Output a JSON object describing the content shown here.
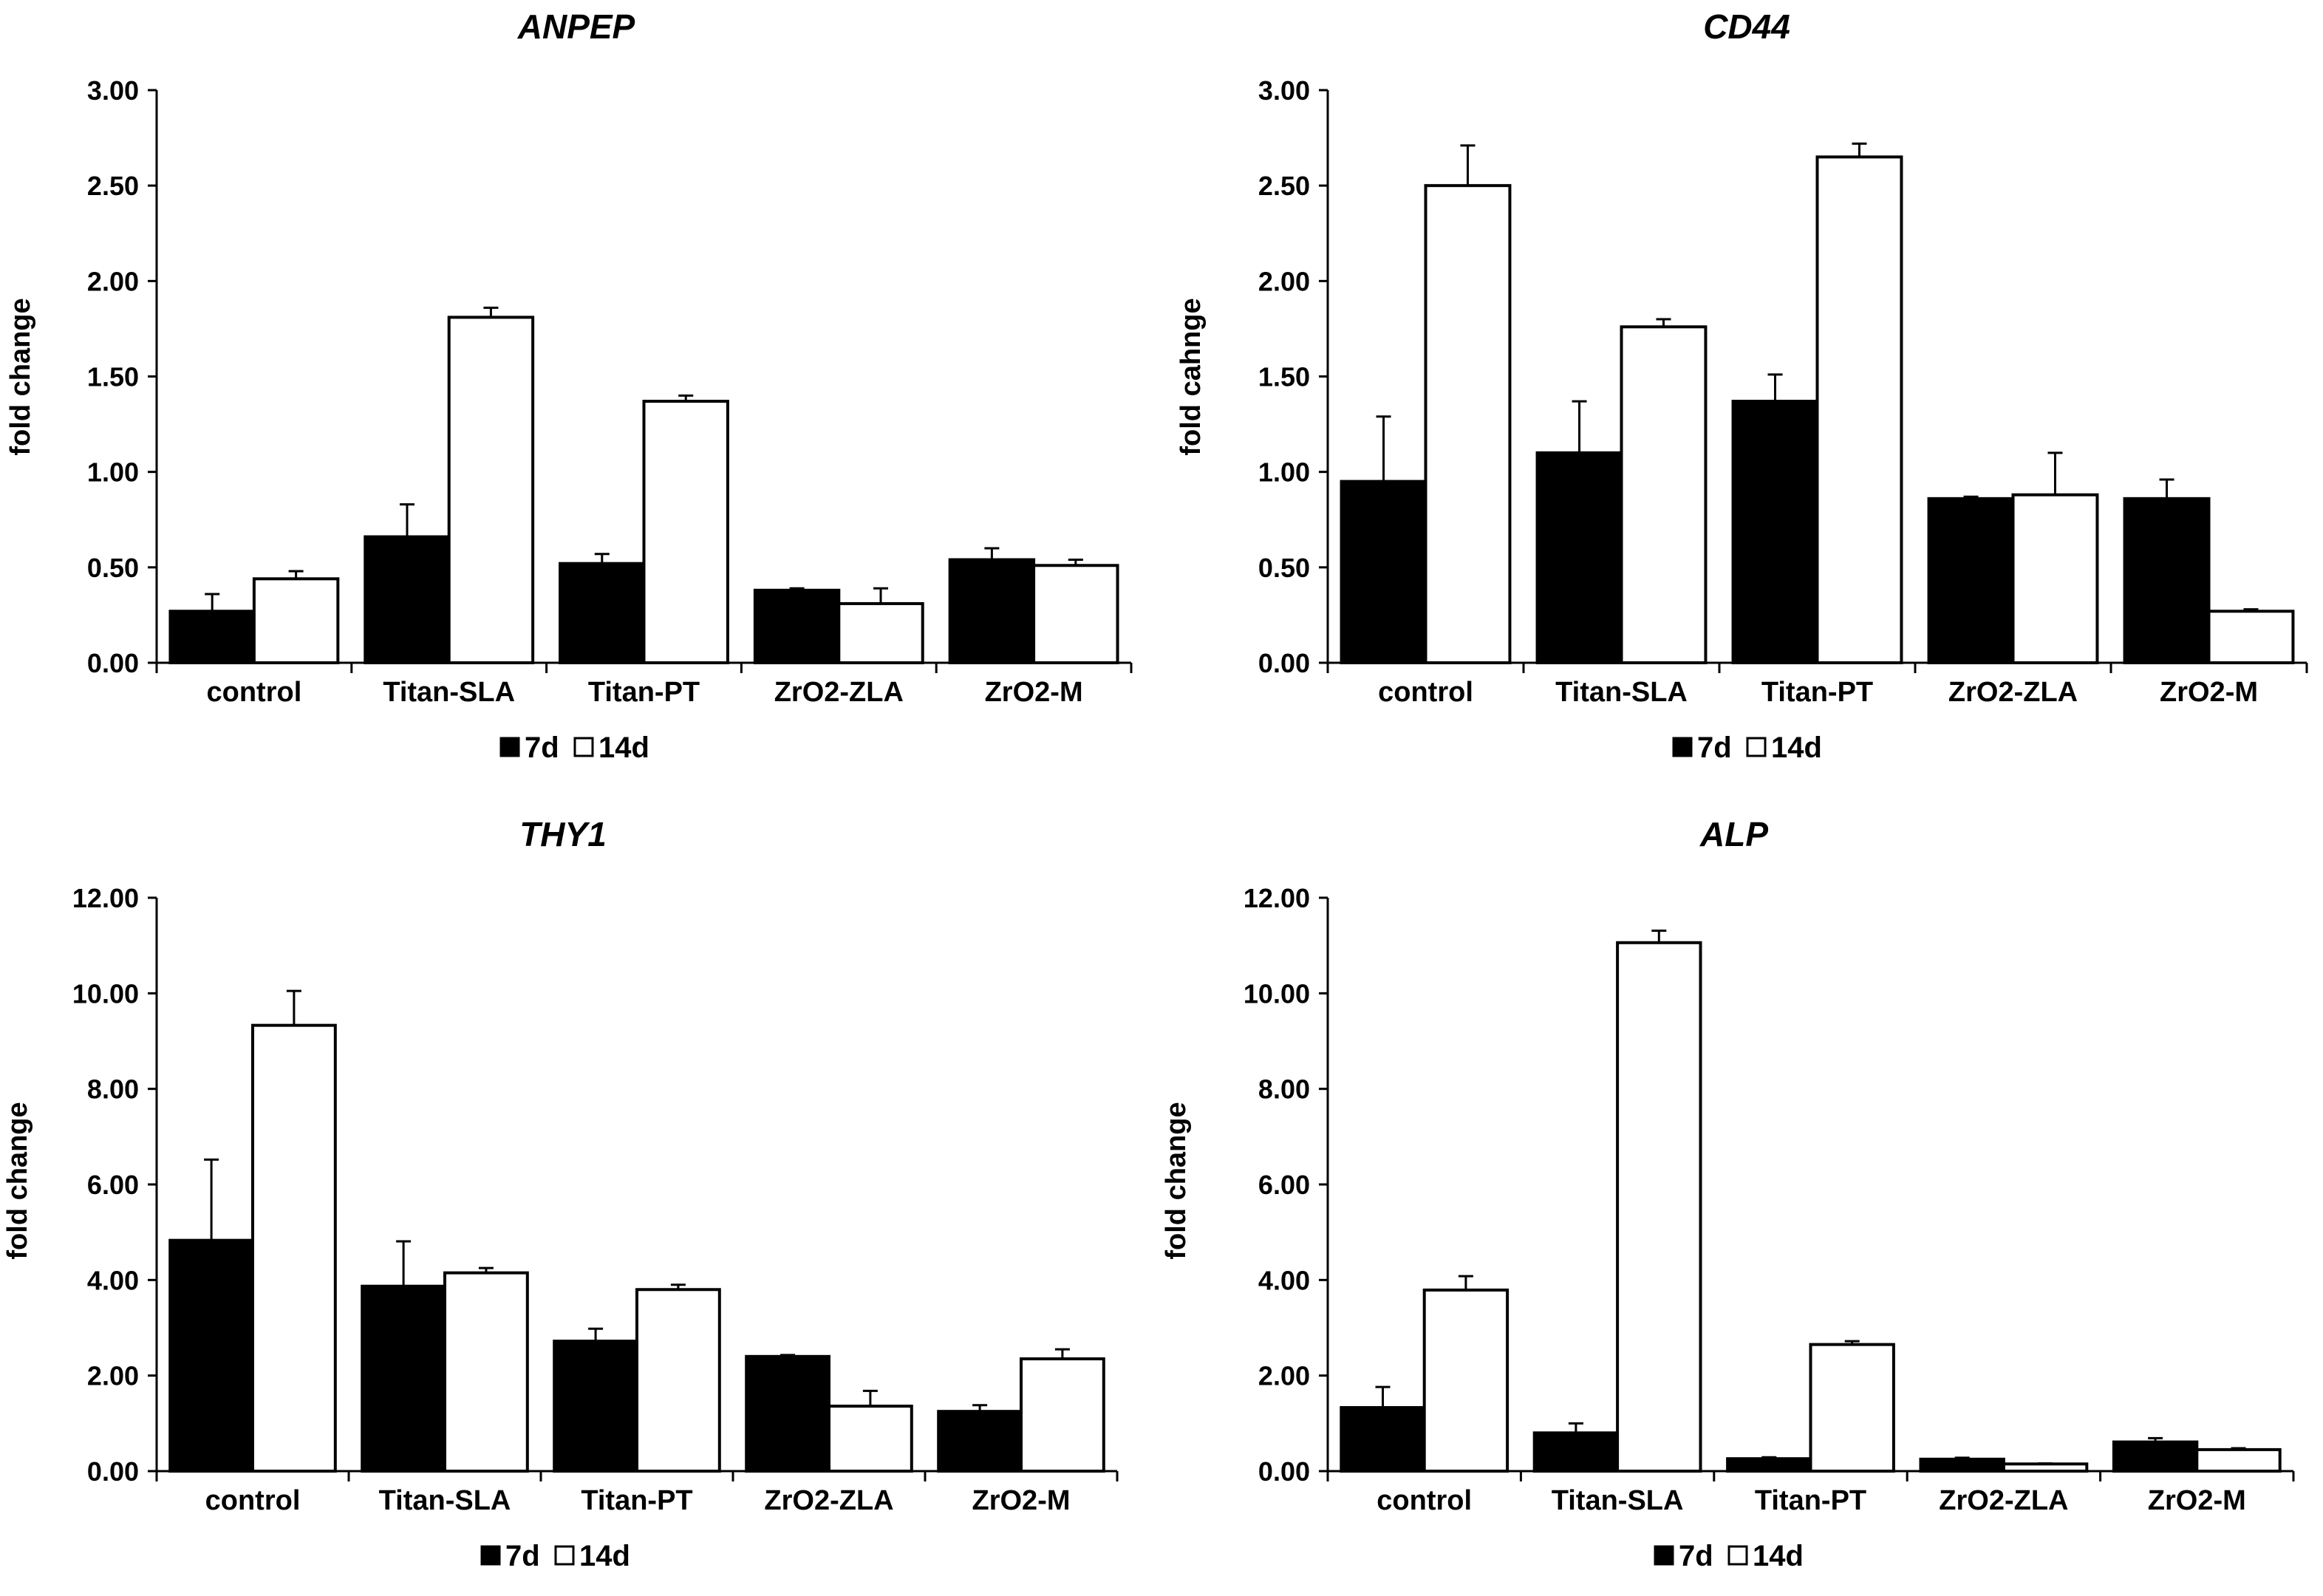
{
  "chart_data": [
    {
      "type": "bar",
      "title": "ANPEP",
      "ylabel": "fold change",
      "xlabel": "",
      "ylim": [
        0,
        3
      ],
      "yticks": [
        "0.00",
        "0.50",
        "1.00",
        "1.50",
        "2.00",
        "2.50",
        "3.00"
      ],
      "categories": [
        "control",
        "Titan-SLA",
        "Titan-PT",
        "ZrO2-ZLA",
        "ZrO2-M"
      ],
      "series": [
        {
          "name": "7d",
          "color": "#000000",
          "values": [
            0.27,
            0.66,
            0.52,
            0.38,
            0.54
          ],
          "errors": [
            0.09,
            0.17,
            0.05,
            0.01,
            0.06
          ]
        },
        {
          "name": "14d",
          "color": "#ffffff",
          "values": [
            0.44,
            1.81,
            1.37,
            0.31,
            0.51
          ],
          "errors": [
            0.04,
            0.05,
            0.03,
            0.08,
            0.03
          ]
        }
      ],
      "legend": [
        "7d",
        "14d"
      ]
    },
    {
      "type": "bar",
      "title": "CD44",
      "ylabel": "fold cahnge",
      "xlabel": "",
      "ylim": [
        0,
        3
      ],
      "yticks": [
        "0.00",
        "0.50",
        "1.00",
        "1.50",
        "2.00",
        "2.50",
        "3.00"
      ],
      "categories": [
        "control",
        "Titan-SLA",
        "Titan-PT",
        "ZrO2-ZLA",
        "ZrO2-M"
      ],
      "series": [
        {
          "name": "7d",
          "color": "#000000",
          "values": [
            0.95,
            1.1,
            1.37,
            0.86,
            0.86
          ],
          "errors": [
            0.34,
            0.27,
            0.14,
            0.01,
            0.1
          ]
        },
        {
          "name": "14d",
          "color": "#ffffff",
          "values": [
            2.5,
            1.76,
            2.65,
            0.88,
            0.27
          ],
          "errors": [
            0.21,
            0.04,
            0.07,
            0.22,
            0.01
          ]
        }
      ],
      "legend": [
        "7d",
        "14d"
      ]
    },
    {
      "type": "bar",
      "title": "THY1",
      "ylabel": "fold change",
      "xlabel": "",
      "ylim": [
        0,
        12
      ],
      "yticks": [
        "0.00",
        "2.00",
        "4.00",
        "6.00",
        "8.00",
        "10.00",
        "12.00"
      ],
      "categories": [
        "control",
        "Titan-SLA",
        "Titan-PT",
        "ZrO2-ZLA",
        "ZrO2-M"
      ],
      "series": [
        {
          "name": "7d",
          "color": "#000000",
          "values": [
            4.83,
            3.87,
            2.72,
            2.4,
            1.25
          ],
          "errors": [
            1.69,
            0.94,
            0.26,
            0.03,
            0.13
          ]
        },
        {
          "name": "14d",
          "color": "#ffffff",
          "values": [
            9.33,
            4.15,
            3.8,
            1.36,
            2.35
          ],
          "errors": [
            0.72,
            0.1,
            0.1,
            0.32,
            0.2
          ]
        }
      ],
      "legend": [
        "7d",
        "14d"
      ]
    },
    {
      "type": "bar",
      "title": "ALP",
      "ylabel": "fold change",
      "xlabel": "",
      "ylim": [
        0,
        12
      ],
      "yticks": [
        "0.00",
        "2.00",
        "4.00",
        "6.00",
        "8.00",
        "10.00",
        "12.00"
      ],
      "categories": [
        "control",
        "Titan-SLA",
        "Titan-PT",
        "ZrO2-ZLA",
        "ZrO2-M"
      ],
      "series": [
        {
          "name": "7d",
          "color": "#000000",
          "values": [
            1.33,
            0.8,
            0.26,
            0.25,
            0.61
          ],
          "errors": [
            0.43,
            0.2,
            0.03,
            0.03,
            0.08
          ]
        },
        {
          "name": "14d",
          "color": "#ffffff",
          "values": [
            3.79,
            11.06,
            2.65,
            0.15,
            0.45
          ],
          "errors": [
            0.29,
            0.25,
            0.07,
            0.01,
            0.03
          ]
        }
      ],
      "legend": [
        "7d",
        "14d"
      ]
    }
  ]
}
